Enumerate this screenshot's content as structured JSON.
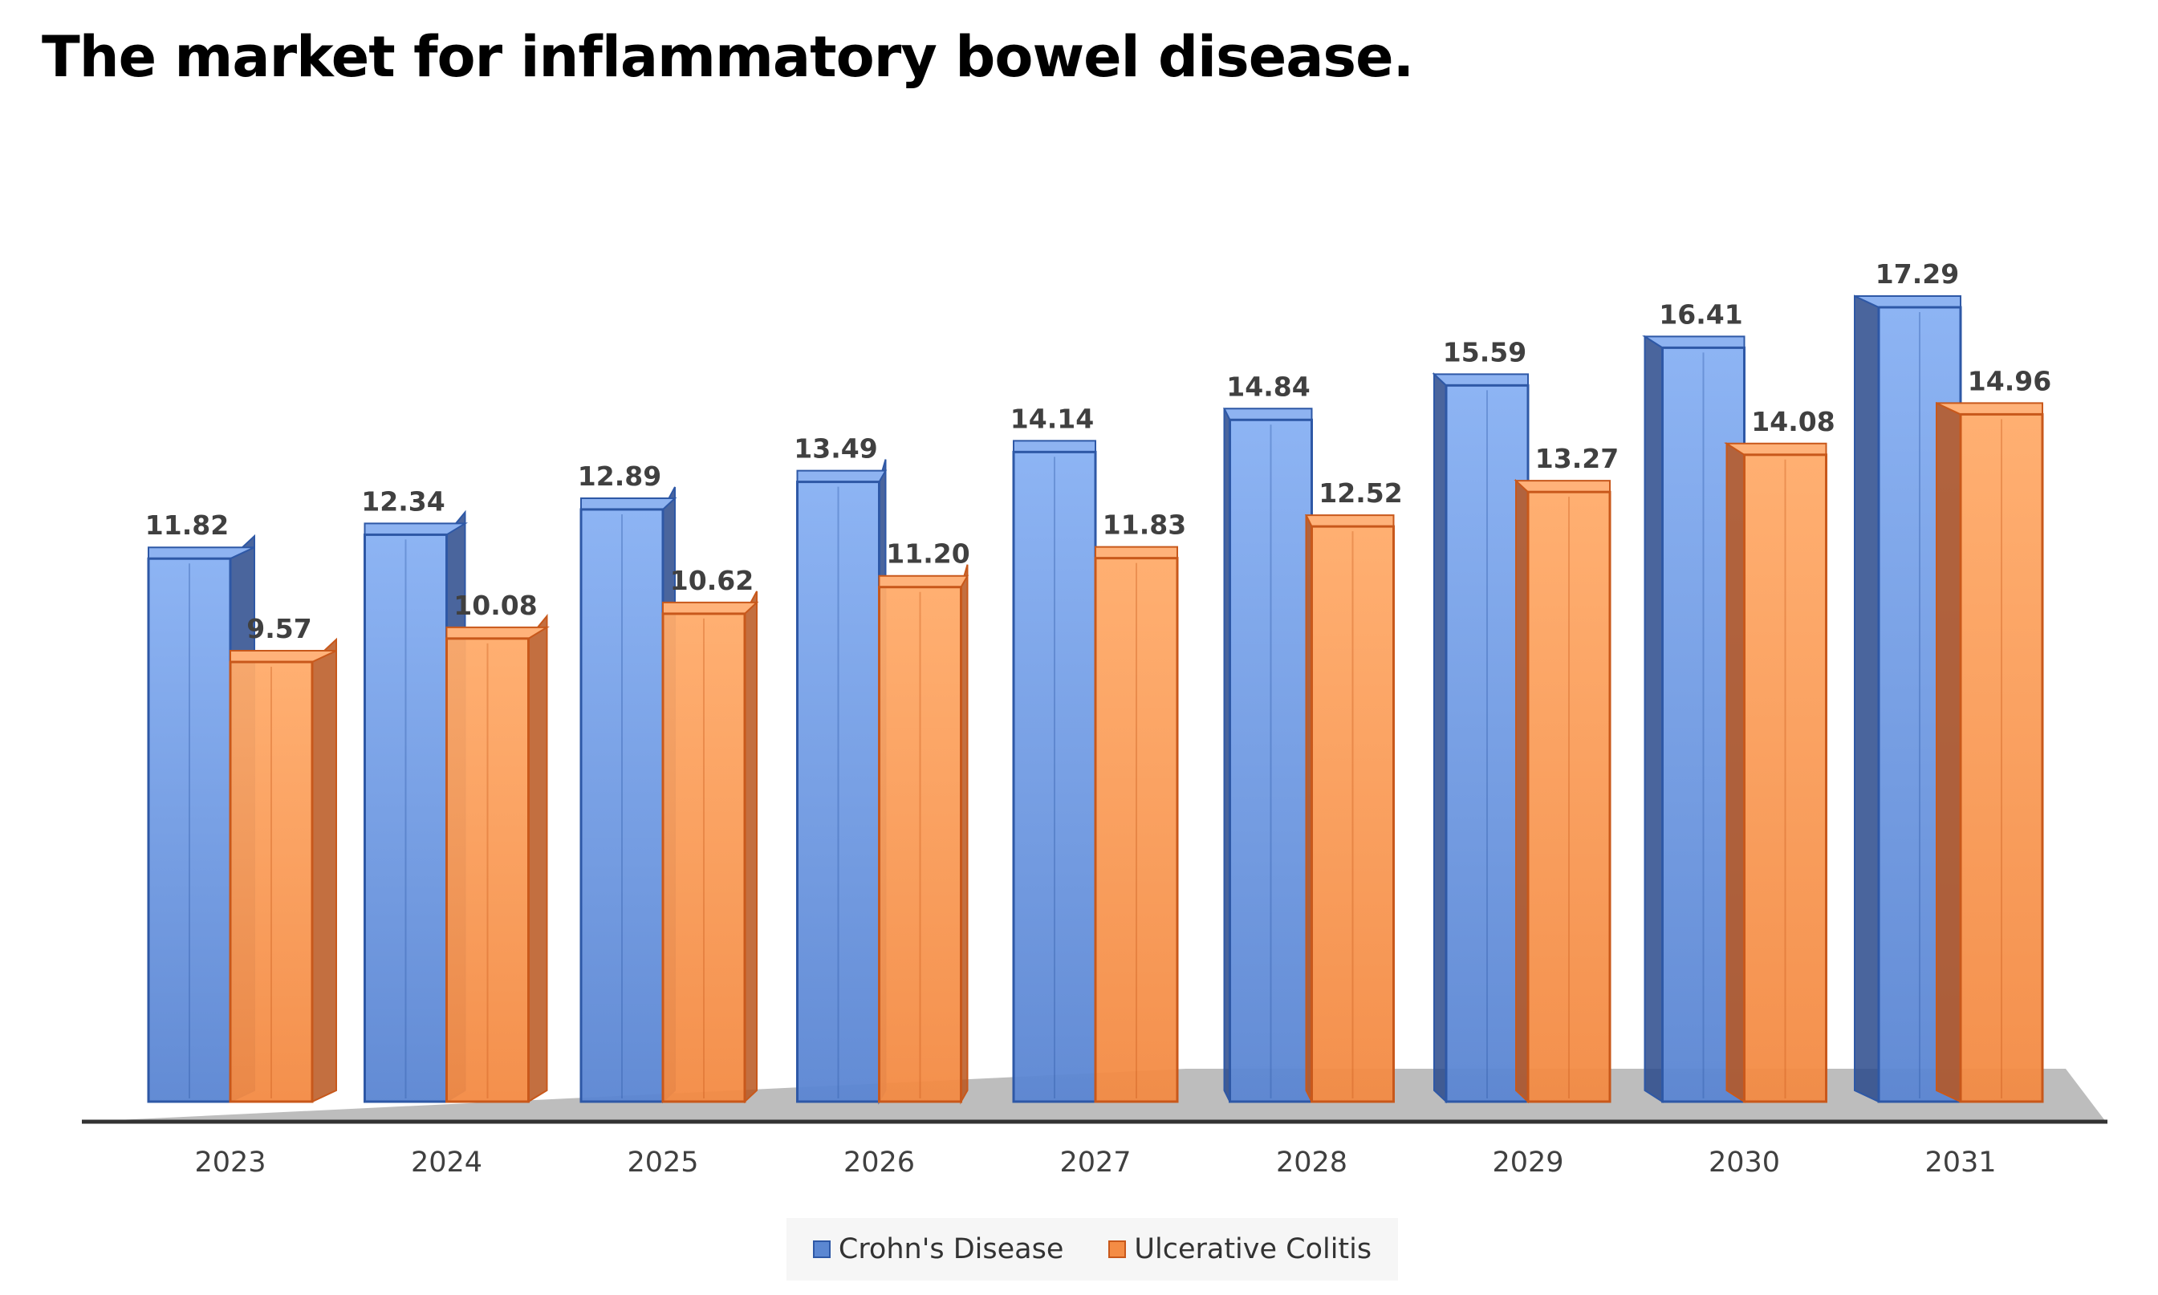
{
  "title": "The market for inflammatory bowel disease.",
  "chart_data": {
    "type": "bar",
    "title": "The market for inflammatory bowel disease.",
    "xlabel": "",
    "ylabel": "",
    "categories": [
      "2023",
      "2024",
      "2025",
      "2026",
      "2027",
      "2028",
      "2029",
      "2030",
      "2031"
    ],
    "series": [
      {
        "name": "Crohn's Disease",
        "values": [
          11.82,
          12.34,
          12.89,
          13.49,
          14.14,
          14.84,
          15.59,
          16.41,
          17.29
        ],
        "labels": [
          "11.82",
          "12.34",
          "12.89",
          "13.49",
          "14.14",
          "14.84",
          "15.59",
          "16.41",
          "17.29"
        ],
        "color": "#5b87d2"
      },
      {
        "name": "Ulcerative Colitis",
        "values": [
          9.57,
          10.08,
          10.62,
          11.2,
          11.83,
          12.52,
          13.27,
          14.08,
          14.96
        ],
        "labels": [
          "9.57",
          "10.08",
          "10.62",
          "11.20",
          "11.83",
          "12.52",
          "13.27",
          "14.08",
          "14.96"
        ],
        "color": "#f48c45"
      }
    ],
    "ylim": [
      0,
      17.29
    ],
    "style": "3d-clustered-column",
    "grid": false,
    "axis_line_color": "#333333",
    "floor_color": "#bdbdbd",
    "legend_position": "bottom"
  }
}
